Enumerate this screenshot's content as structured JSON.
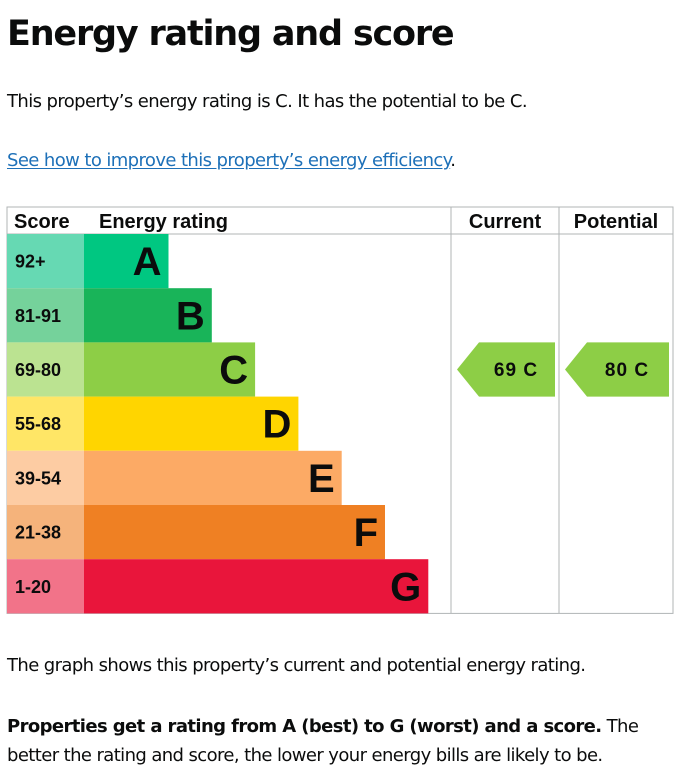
{
  "heading": "Energy rating and score",
  "summary": "This property’s energy rating is C. It has the potential to be C.",
  "improve_link": "See how to improve this property’s energy efficiency",
  "improve_link_suffix": ".",
  "graph_description": "The graph shows this property’s current and potential energy rating.",
  "rating_explanation_bold": "Properties get a rating from A (best) to G (worst) and a score.",
  "rating_explanation_rest": " The better the rating and score, the lower your energy bills are likely to be.",
  "chart_data": {
    "type": "bar",
    "columns": [
      "Score",
      "Energy rating",
      "Current",
      "Potential"
    ],
    "categories": [
      "A",
      "B",
      "C",
      "D",
      "E",
      "F",
      "G"
    ],
    "score_ranges": [
      "92+",
      "81-91",
      "69-80",
      "55-68",
      "39-54",
      "21-38",
      "1-20"
    ],
    "band_colors": [
      "#00c781",
      "#19b459",
      "#8dce46",
      "#ffd500",
      "#fcaa65",
      "#ef8023",
      "#e9153b"
    ],
    "score_colors": [
      "#66d9b3",
      "#75d29b",
      "#bbe391",
      "#ffe666",
      "#fdcca3",
      "#f5b37b",
      "#f27389"
    ],
    "current": {
      "score": 69,
      "band": "C",
      "label": "69 C",
      "color": "#8dce46"
    },
    "potential": {
      "score": 80,
      "band": "C",
      "label": "80 C",
      "color": "#8dce46"
    }
  }
}
